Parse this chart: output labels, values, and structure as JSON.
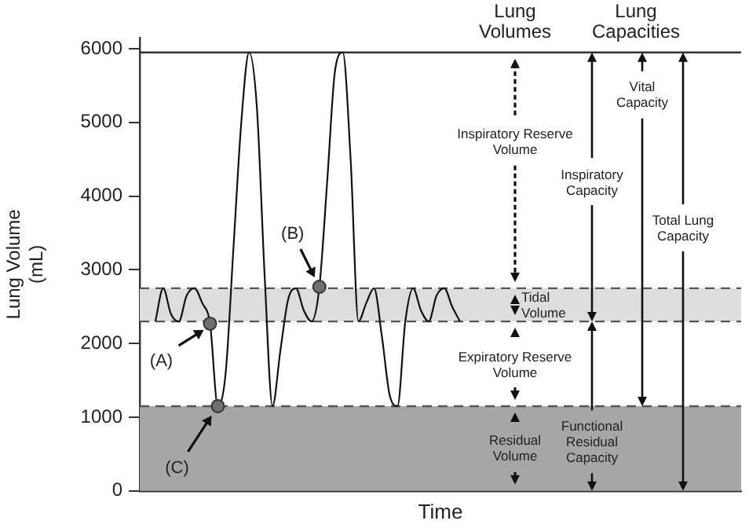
{
  "chart_data": {
    "type": "line",
    "xlabel": "Time",
    "ylabel": "Lung Volume (mL)",
    "categories": [
      null,
      null,
      null,
      null,
      null,
      null,
      null,
      null,
      null,
      null,
      null,
      null,
      null,
      null,
      null,
      null,
      null,
      null,
      null,
      null,
      null,
      null,
      null,
      null,
      null,
      null,
      null,
      null,
      null,
      null,
      null,
      null,
      null,
      null,
      null,
      null,
      null,
      null,
      null,
      null,
      null,
      null,
      null,
      null,
      null,
      null,
      null,
      null,
      null,
      null,
      null,
      null,
      null,
      null,
      null,
      null,
      null,
      null,
      null,
      null,
      null,
      null,
      null,
      null,
      null,
      null,
      null,
      null,
      null,
      null,
      null,
      null,
      null,
      null,
      null,
      null,
      null,
      null
    ],
    "series": [
      {
        "color": "#111111",
        "marker": "none",
        "values": [
          null,
          null,
          2300,
          2750,
          2400,
          2300,
          2650,
          2750,
          2550,
          2270,
          1150,
          1600,
          3300,
          5000,
          5950,
          5200,
          2900,
          1150,
          1900,
          2600,
          2750,
          2450,
          2300,
          2770,
          4200,
          5700,
          5950,
          4500,
          2300,
          2550,
          2750,
          2100,
          1300,
          1150,
          2300,
          2750,
          2450,
          2300,
          2650,
          2750,
          2500,
          2300,
          null,
          null,
          null,
          null,
          null,
          null,
          null,
          null,
          null,
          null,
          null,
          null,
          null,
          null,
          null,
          null,
          null,
          null,
          null,
          null,
          null,
          null,
          null,
          null,
          null,
          null,
          null,
          null,
          null,
          null,
          null,
          null,
          null,
          null,
          null,
          null
        ]
      },
      {
        "type": "scatter",
        "color": "#707070",
        "marker": "circle",
        "values": [
          null,
          null,
          null,
          null,
          null,
          null,
          null,
          null,
          null,
          2270,
          1150,
          null,
          null,
          null,
          null,
          null,
          null,
          null,
          null,
          null,
          null,
          null,
          null,
          2770,
          null,
          null,
          null,
          null,
          null,
          null,
          null,
          null,
          null,
          null,
          null,
          null,
          null,
          null,
          null,
          null,
          null,
          null,
          null,
          null,
          null,
          null,
          null,
          null,
          null,
          null,
          null,
          null,
          null,
          null,
          null,
          null,
          null,
          null,
          null,
          null,
          null,
          null,
          null,
          null,
          null,
          null,
          null,
          null,
          null,
          null,
          null,
          null,
          null,
          null,
          null,
          null,
          null,
          null
        ]
      }
    ],
    "ylim": [
      0,
      6150
    ],
    "yticks": [
      0,
      1000,
      2000,
      3000,
      4000,
      5000,
      6000
    ],
    "tick_labels": "y",
    "bands": [
      {
        "axis": "y",
        "from": 0,
        "to": 1150,
        "color": "#a6a6a6"
      },
      {
        "axis": "y",
        "from": 2300,
        "to": 2750,
        "color": "#dddddd"
      }
    ],
    "ref_lines": [
      {
        "axis": "y",
        "value": 1150,
        "color": "#555555",
        "line_style": "dashed"
      },
      {
        "axis": "y",
        "value": 2300,
        "color": "#555555",
        "line_style": "dashed"
      },
      {
        "axis": "y",
        "value": 2750,
        "color": "#555555",
        "line_style": "dashed"
      },
      {
        "axis": "y",
        "value": 5950,
        "color": "#333333",
        "line_style": "solid"
      }
    ],
    "annotations": [
      "Lung Volumes",
      "Lung Capacities",
      "Inspiratory Reserve Volume",
      "Tidal Volume",
      "Expiratory Reserve Volume",
      "Residual Volume",
      "Inspiratory Capacity",
      "Functional Residual Capacity",
      "Vital Capacity",
      "Total Lung Capacity",
      {
        "text": "(A)",
        "y": 2270
      },
      {
        "text": "(B)",
        "y": 2770
      },
      "(C)"
    ]
  }
}
